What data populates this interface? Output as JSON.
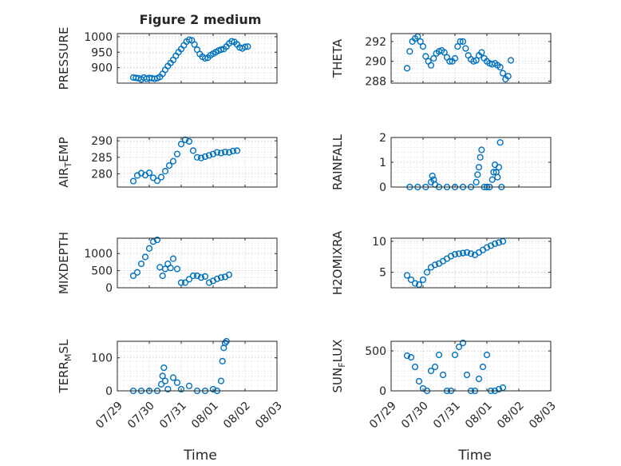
{
  "figure_title": "Figure 2 medium",
  "xlabel": "Time",
  "marker_color": "#0072BD",
  "x_ticks": [
    "07/29",
    "07/30",
    "07/31",
    "08/01",
    "08/02",
    "08/03"
  ],
  "chart_data": [
    {
      "type": "scatter",
      "ylabel": "PRESSURE",
      "ylim": [
        850,
        1010
      ],
      "yticks": [
        900,
        950,
        1000
      ],
      "x": [
        "07/29 12:00",
        "07/29 14:00",
        "07/29 16:00",
        "07/29 18:00",
        "07/29 20:00",
        "07/29 22:00",
        "07/30 00:00",
        "07/30 02:00",
        "07/30 04:00",
        "07/30 06:00",
        "07/30 08:00",
        "07/30 10:00",
        "07/30 12:00",
        "07/30 14:00",
        "07/30 16:00",
        "07/30 18:00",
        "07/30 20:00",
        "07/30 22:00",
        "07/31 00:00",
        "07/31 02:00",
        "07/31 04:00",
        "07/31 06:00",
        "07/31 08:00",
        "07/31 10:00",
        "07/31 12:00",
        "07/31 14:00",
        "07/31 16:00",
        "07/31 18:00",
        "07/31 20:00",
        "07/31 22:00",
        "08/01 00:00",
        "08/01 02:00",
        "08/01 04:00",
        "08/01 06:00",
        "08/01 08:00",
        "08/01 10:00",
        "08/01 12:00",
        "08/01 14:00",
        "08/01 16:00",
        "08/01 18:00",
        "08/01 20:00",
        "08/01 22:00",
        "08/02 00:00",
        "08/02 02:00",
        "08/02 04:00",
        "08/02 06:00",
        "08/02 08:00",
        "08/02 10:00"
      ],
      "y": [
        868,
        867,
        866,
        862,
        868,
        864,
        867,
        866,
        864,
        866,
        870,
        880,
        893,
        905,
        915,
        925,
        938,
        950,
        960,
        972,
        984,
        990,
        988,
        975,
        958,
        944,
        935,
        930,
        932,
        940,
        945,
        950,
        955,
        958,
        960,
        968,
        978,
        985,
        983,
        975,
        965,
        962,
        967,
        968,
        null,
        null,
        null,
        null
      ]
    },
    {
      "type": "scatter",
      "ylabel": "THETA",
      "ylim": [
        287.8,
        292.8
      ],
      "yticks": [
        288,
        290,
        292
      ],
      "x": [
        "07/29 12:00",
        "07/29 14:00",
        "07/29 16:00",
        "07/29 18:00",
        "07/29 20:00",
        "07/29 22:00",
        "07/30 00:00",
        "07/30 02:00",
        "07/30 04:00",
        "07/30 06:00",
        "07/30 08:00",
        "07/30 10:00",
        "07/30 12:00",
        "07/30 14:00",
        "07/30 16:00",
        "07/30 18:00",
        "07/30 20:00",
        "07/30 22:00",
        "07/31 00:00",
        "07/31 02:00",
        "07/31 04:00",
        "07/31 06:00",
        "07/31 08:00",
        "07/31 10:00",
        "07/31 12:00",
        "07/31 14:00",
        "07/31 16:00",
        "07/31 18:00",
        "07/31 20:00",
        "07/31 22:00",
        "08/01 00:00",
        "08/01 02:00",
        "08/01 04:00",
        "08/01 06:00",
        "08/01 08:00",
        "08/01 10:00",
        "08/01 12:00",
        "08/01 14:00",
        "08/01 16:00",
        "08/01 18:00"
      ],
      "y": [
        289.3,
        291.0,
        292.0,
        292.3,
        292.5,
        292.0,
        291.5,
        290.5,
        290.0,
        289.6,
        290.3,
        290.8,
        291.0,
        291.1,
        290.9,
        290.4,
        290.0,
        290.0,
        290.3,
        291.5,
        292.0,
        292.0,
        291.3,
        290.6,
        290.2,
        290.0,
        290.1,
        290.6,
        290.9,
        290.3,
        290.0,
        289.8,
        289.7,
        289.8,
        289.6,
        289.4,
        288.8,
        288.2,
        288.5,
        290.1
      ]
    },
    {
      "type": "scatter",
      "ylabel": "AIR_TEMP",
      "ylim": [
        276,
        291
      ],
      "yticks": [
        280,
        285,
        290
      ],
      "x": [
        "07/29 12:00",
        "07/29 15:00",
        "07/29 18:00",
        "07/29 21:00",
        "07/30 00:00",
        "07/30 03:00",
        "07/30 06:00",
        "07/30 09:00",
        "07/30 12:00",
        "07/30 15:00",
        "07/30 18:00",
        "07/30 21:00",
        "07/31 00:00",
        "07/31 03:00",
        "07/31 06:00",
        "07/31 09:00",
        "07/31 12:00",
        "07/31 15:00",
        "07/31 18:00",
        "07/31 21:00",
        "08/01 00:00",
        "08/01 03:00",
        "08/01 06:00",
        "08/01 09:00",
        "08/01 12:00",
        "08/01 15:00",
        "08/01 18:00",
        "08/01 21:00"
      ],
      "y": [
        277.8,
        279.5,
        280.2,
        279.6,
        280.3,
        278.8,
        277.9,
        279.0,
        280.8,
        282.5,
        283.8,
        286.0,
        289.0,
        290.3,
        289.8,
        287.0,
        285.0,
        284.8,
        285.2,
        285.6,
        286.0,
        286.5,
        286.3,
        286.6,
        286.5,
        286.9,
        287.0,
        null
      ]
    },
    {
      "type": "scatter",
      "ylabel": "RAINFALL",
      "ylim": [
        0,
        2
      ],
      "yticks": [
        0,
        1,
        2
      ],
      "x": [
        "07/29 14:00",
        "07/29 20:00",
        "07/30 02:00",
        "07/30 06:00",
        "07/30 07:00",
        "07/30 08:00",
        "07/30 09:00",
        "07/30 12:00",
        "07/30 18:00",
        "07/31 00:00",
        "07/31 06:00",
        "07/31 12:00",
        "07/31 16:00",
        "07/31 17:00",
        "07/31 18:00",
        "07/31 19:00",
        "07/31 20:00",
        "07/31 22:00",
        "08/01 00:00",
        "08/01 02:00",
        "08/01 04:00",
        "08/01 05:00",
        "08/01 06:00",
        "08/01 07:00",
        "08/01 08:00",
        "08/01 09:00",
        "08/01 10:00",
        "08/01 11:00"
      ],
      "y": [
        0,
        0,
        0,
        0.2,
        0.45,
        0.3,
        0.1,
        0,
        0,
        0,
        0,
        0,
        0.2,
        0.5,
        0.8,
        1.2,
        1.5,
        0,
        0,
        0,
        0.3,
        0.6,
        0.9,
        0.6,
        0.4,
        0.8,
        1.8,
        0
      ]
    },
    {
      "type": "scatter",
      "ylabel": "MIXDEPTH",
      "ylim": [
        0,
        1450
      ],
      "yticks": [
        0,
        500,
        1000
      ],
      "x": [
        "07/29 12:00",
        "07/29 15:00",
        "07/29 18:00",
        "07/29 21:00",
        "07/30 00:00",
        "07/30 03:00",
        "07/30 06:00",
        "07/30 08:00",
        "07/30 10:00",
        "07/30 12:00",
        "07/30 14:00",
        "07/30 16:00",
        "07/30 18:00",
        "07/30 21:00",
        "07/31 00:00",
        "07/31 03:00",
        "07/31 06:00",
        "07/31 09:00",
        "07/31 12:00",
        "07/31 15:00",
        "07/31 18:00",
        "07/31 21:00",
        "08/01 00:00",
        "08/01 03:00",
        "08/01 06:00",
        "08/01 09:00",
        "08/01 12:00"
      ],
      "y": [
        350,
        450,
        700,
        900,
        1150,
        1350,
        1400,
        600,
        350,
        550,
        700,
        580,
        850,
        550,
        150,
        150,
        250,
        350,
        350,
        300,
        330,
        150,
        200,
        260,
        300,
        320,
        380
      ]
    },
    {
      "type": "scatter",
      "ylabel": "H2OMIXRA",
      "ylim": [
        2.5,
        10.5
      ],
      "yticks": [
        5,
        10
      ],
      "x": [
        "07/29 12:00",
        "07/29 15:00",
        "07/29 18:00",
        "07/29 21:00",
        "07/30 00:00",
        "07/30 03:00",
        "07/30 06:00",
        "07/30 09:00",
        "07/30 12:00",
        "07/30 15:00",
        "07/30 18:00",
        "07/30 21:00",
        "07/31 00:00",
        "07/31 03:00",
        "07/31 06:00",
        "07/31 09:00",
        "07/31 12:00",
        "07/31 15:00",
        "07/31 18:00",
        "07/31 21:00",
        "08/01 00:00",
        "08/01 03:00",
        "08/01 06:00",
        "08/01 09:00",
        "08/01 12:00"
      ],
      "y": [
        4.5,
        3.8,
        3.2,
        3.0,
        3.8,
        5.0,
        5.8,
        6.2,
        6.4,
        6.8,
        7.2,
        7.6,
        7.9,
        8.0,
        8.1,
        8.2,
        8.0,
        7.8,
        8.2,
        8.6,
        9.0,
        9.3,
        9.6,
        9.8,
        10.0
      ]
    },
    {
      "type": "scatter",
      "ylabel": "TERR_MSL",
      "ylim": [
        0,
        150
      ],
      "yticks": [
        0,
        100
      ],
      "x": [
        "07/29 12:00",
        "07/29 18:00",
        "07/30 00:00",
        "07/30 06:00",
        "07/30 09:00",
        "07/30 10:00",
        "07/30 11:00",
        "07/30 12:00",
        "07/30 14:00",
        "07/30 18:00",
        "07/30 21:00",
        "07/31 00:00",
        "07/31 06:00",
        "07/31 12:00",
        "07/31 18:00",
        "08/01 00:00",
        "08/01 03:00",
        "08/01 06:00",
        "08/01 07:00",
        "08/01 08:00",
        "08/01 09:00",
        "08/01 10:00"
      ],
      "y": [
        0,
        0,
        0,
        0,
        20,
        45,
        70,
        30,
        5,
        40,
        25,
        5,
        15,
        0,
        0,
        5,
        0,
        30,
        90,
        130,
        145,
        150
      ]
    },
    {
      "type": "scatter",
      "ylabel": "SUN_FLUX",
      "ylim": [
        0,
        620
      ],
      "yticks": [
        0,
        500
      ],
      "x": [
        "07/29 12:00",
        "07/29 15:00",
        "07/29 18:00",
        "07/29 21:00",
        "07/30 00:00",
        "07/30 03:00",
        "07/30 06:00",
        "07/30 09:00",
        "07/30 12:00",
        "07/30 15:00",
        "07/30 18:00",
        "07/30 21:00",
        "07/31 00:00",
        "07/31 03:00",
        "07/31 06:00",
        "07/31 09:00",
        "07/31 12:00",
        "07/31 15:00",
        "07/31 18:00",
        "07/31 21:00",
        "08/01 00:00",
        "08/01 03:00",
        "08/01 06:00",
        "08/01 09:00",
        "08/01 12:00"
      ],
      "y": [
        440,
        420,
        300,
        120,
        30,
        0,
        250,
        300,
        450,
        200,
        0,
        0,
        450,
        550,
        600,
        200,
        0,
        0,
        150,
        300,
        450,
        0,
        0,
        20,
        40
      ]
    }
  ]
}
